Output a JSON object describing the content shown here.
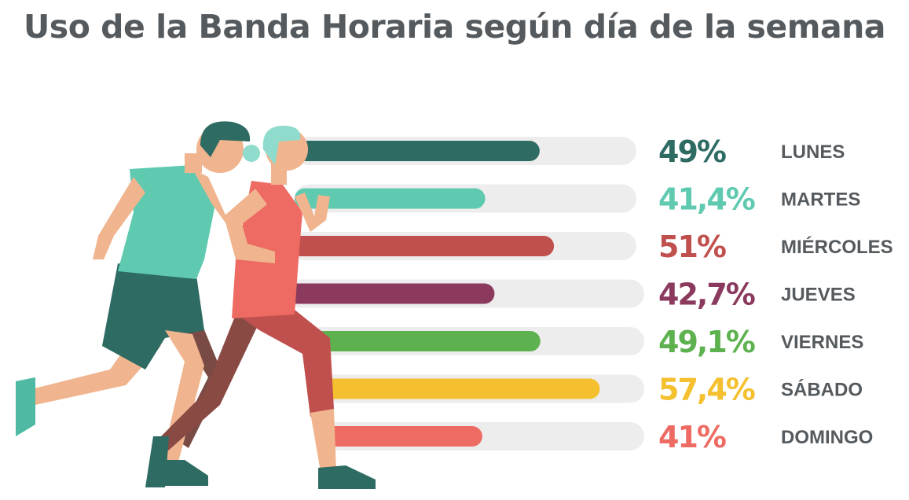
{
  "title": "Uso de la Banda Horaria según día de la semana",
  "chart_data": {
    "type": "bar",
    "orientation": "horizontal",
    "title": "Uso de la Banda Horaria según día de la semana",
    "categories": [
      "LUNES",
      "MARTES",
      "MIÉRCOLES",
      "JUEVES",
      "VIERNES",
      "SÁBADO",
      "DOMINGO"
    ],
    "values": [
      49,
      41.4,
      51,
      42.7,
      49.1,
      57.4,
      41
    ],
    "value_labels": [
      "49%",
      "41,4%",
      "51%",
      "42,7%",
      "49,1%",
      "57,4%",
      "41%"
    ],
    "colors": [
      "#2e6b63",
      "#5fcab0",
      "#c0504d",
      "#8b3a5e",
      "#5db24f",
      "#f4c02f",
      "#ee6b63"
    ],
    "track_color": "#ededed",
    "xlim": [
      0,
      100
    ],
    "grid": false,
    "legend": "none"
  }
}
